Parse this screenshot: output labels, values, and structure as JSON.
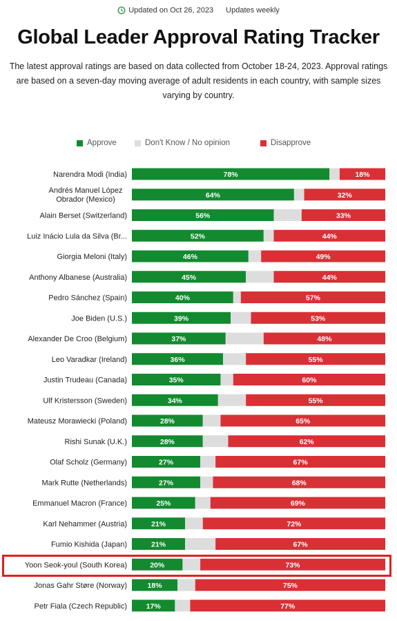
{
  "header": {
    "updated": "Updated on Oct 26, 2023",
    "frequency": "Updates weekly"
  },
  "title": "Global Leader Approval Rating Tracker",
  "subtitle": "The latest approval ratings are based on data collected from October 18-24, 2023. Approval ratings are based on a seven-day moving average of adult residents in each country, with sample sizes varying by country.",
  "colors": {
    "approve": "#138a2f",
    "dontknow": "#dddddd",
    "disapprove": "#d93036",
    "highlight": "#e0201c"
  },
  "chart_data": {
    "type": "bar",
    "stacked": true,
    "orientation": "horizontal",
    "legend": [
      "Approve",
      "Don't Know / No opinion",
      "Disapprove"
    ],
    "legend_position": "top",
    "xlim": [
      0,
      100
    ],
    "categories": [
      "Narendra Modi (India)",
      "Andrés Manuel López Obrador (Mexico)",
      "Alain Berset (Switzerland)",
      "Luiz Inácio Lula da Silva (Br...",
      "Giorgia Meloni (Italy)",
      "Anthony Albanese (Australia)",
      "Pedro Sánchez (Spain)",
      "Joe Biden (U.S.)",
      "Alexander De Croo (Belgium)",
      "Leo Varadkar (Ireland)",
      "Justin Trudeau (Canada)",
      "Ulf Kristersson (Sweden)",
      "Mateusz Morawiecki (Poland)",
      "Rishi Sunak (U.K.)",
      "Olaf Scholz (Germany)",
      "Mark Rutte (Netherlands)",
      "Emmanuel Macron (France)",
      "Karl Nehammer (Austria)",
      "Fumio Kishida (Japan)",
      "Yoon Seok-youl (South Korea)",
      "Jonas Gahr Støre (Norway)",
      "Petr Fiala (Czech Republic)"
    ],
    "series": [
      {
        "name": "Approve",
        "values": [
          78,
          64,
          56,
          52,
          46,
          45,
          40,
          39,
          37,
          36,
          35,
          34,
          28,
          28,
          27,
          27,
          25,
          21,
          21,
          20,
          18,
          17
        ]
      },
      {
        "name": "Don't Know / No opinion",
        "values": [
          4,
          4,
          11,
          4,
          5,
          11,
          3,
          8,
          15,
          9,
          5,
          11,
          7,
          10,
          6,
          5,
          6,
          7,
          12,
          7,
          7,
          6
        ]
      },
      {
        "name": "Disapprove",
        "values": [
          18,
          32,
          33,
          44,
          49,
          44,
          57,
          53,
          48,
          55,
          60,
          55,
          65,
          62,
          67,
          68,
          69,
          72,
          67,
          73,
          75,
          77
        ]
      }
    ],
    "highlighted": "Yoon Seok-youl (South Korea)"
  }
}
